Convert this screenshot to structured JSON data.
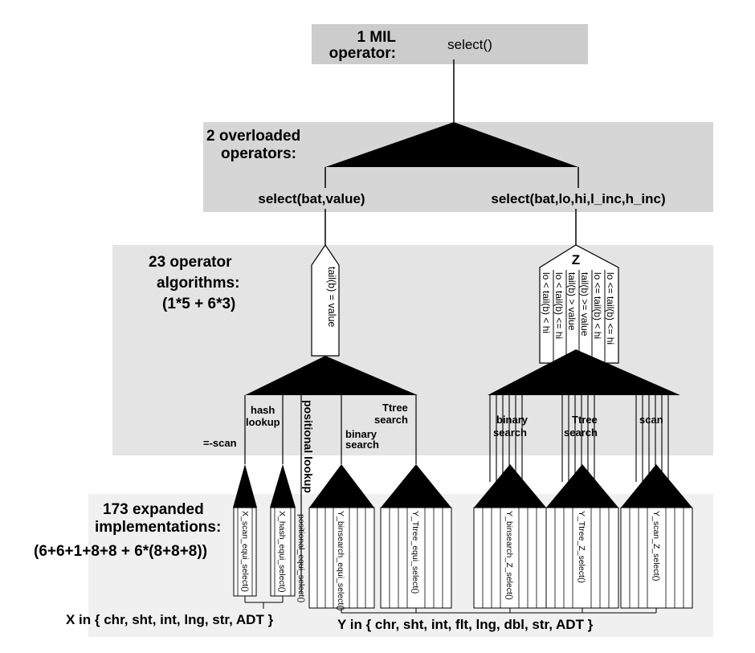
{
  "levels": {
    "mil": {
      "count_label": "1 MIL",
      "name_label": "operator:",
      "operator": "select()"
    },
    "overloaded": {
      "line1": "2 overloaded",
      "line2": "operators:",
      "op_left": "select(bat,value)",
      "op_right": "select(bat,lo,hi,l_inc,h_inc)"
    },
    "algorithms": {
      "line1": "23 operator",
      "line2": "algorithms:",
      "line3": "(1*5 + 6*3)"
    },
    "implementations": {
      "line1": "173 expanded",
      "line2": "implementations:",
      "line3": "(6+6+1+8+8 + 6*(8+8+8))"
    }
  },
  "left_branch": {
    "predicate": "tail(b) = value",
    "methods": {
      "scan": "=-scan",
      "hash_1": "hash",
      "hash_2": "lookup",
      "positional": "positional lookup",
      "binary_1": "binary",
      "binary_2": "search",
      "ttree_1": "Ttree",
      "ttree_2": "search"
    },
    "impls": {
      "scan": "X_scan_equi_select()",
      "hash": "X_hash_equi_select()",
      "positional": "positional_equi_select()",
      "binsearch": "Y_binsearch_equi_select()",
      "ttree": "Y_Ttree_equi_select()"
    }
  },
  "right_branch": {
    "z_label": "Z",
    "predicates": [
      "lo < tail(b) < hi",
      "lo < tail(b) <= hi",
      "tail(b) > value",
      "tail(b) >= value",
      "lo <= tail(b) < hi",
      "lo <= tail(b) <= hi"
    ],
    "methods": {
      "binary_1": "binary",
      "binary_2": "search",
      "ttree_1": "Ttree",
      "ttree_2": "search",
      "scan": "scan"
    },
    "impls": {
      "binsearch": "Y_binsearch_Z_select()",
      "ttree": "Y_Ttree_Z_select()",
      "scan": "Y_scan_Z_select()"
    }
  },
  "type_sets": {
    "x": "X in { chr, sht, int, lng, str, ADT }",
    "y": "Y in { chr, sht, int, flt, lng, dbl, str, ADT }"
  },
  "colors": {
    "band_top": "#cccccc",
    "band_mid": "#d6d6d6",
    "band_algo": "#e4e4e4",
    "band_impl": "#f0f0f0",
    "ink": "#000000"
  }
}
